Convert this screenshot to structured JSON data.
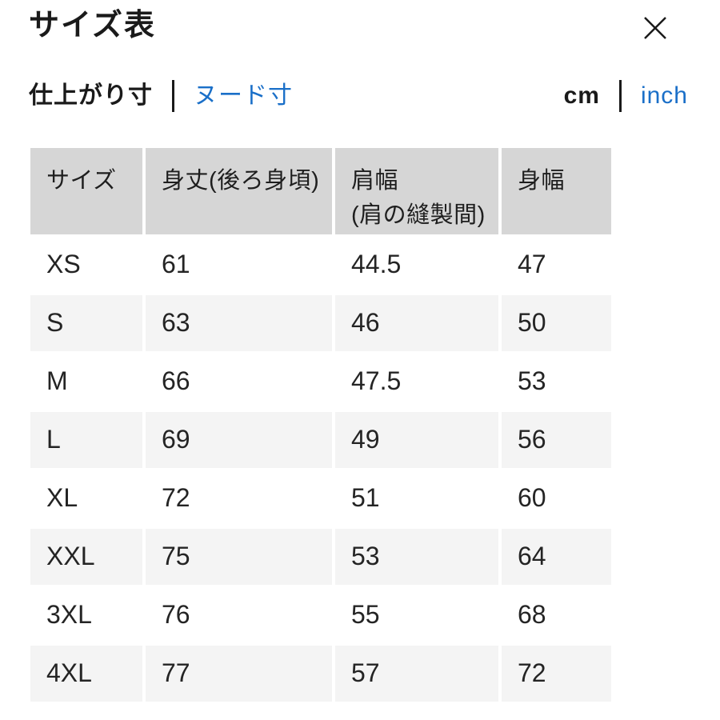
{
  "modal": {
    "title": "サイズ表"
  },
  "icons": {
    "close": "✕"
  },
  "toggles": {
    "measurement": {
      "active": "仕上がり寸",
      "inactive": "ヌード寸"
    },
    "unit": {
      "active": "cm",
      "inactive": "inch"
    }
  },
  "table": {
    "columns": [
      {
        "label": "サイズ",
        "sublabel": ""
      },
      {
        "label": "身丈(後ろ身頃)",
        "sublabel": ""
      },
      {
        "label": "肩幅",
        "sublabel": "(肩の縫製間)"
      },
      {
        "label": "身幅",
        "sublabel": ""
      }
    ],
    "rows": [
      {
        "size": "XS",
        "values": [
          "61",
          "44.5",
          "47"
        ]
      },
      {
        "size": "S",
        "values": [
          "63",
          "46",
          "50"
        ]
      },
      {
        "size": "M",
        "values": [
          "66",
          "47.5",
          "53"
        ]
      },
      {
        "size": "L",
        "values": [
          "69",
          "49",
          "56"
        ]
      },
      {
        "size": "XL",
        "values": [
          "72",
          "51",
          "60"
        ]
      },
      {
        "size": "XXL",
        "values": [
          "75",
          "53",
          "64"
        ]
      },
      {
        "size": "3XL",
        "values": [
          "76",
          "55",
          "68"
        ]
      },
      {
        "size": "4XL",
        "values": [
          "77",
          "57",
          "72"
        ]
      }
    ]
  },
  "colors": {
    "link_blue": "#1a6fc8",
    "header_bg": "#d6d6d6",
    "stripe_bg": "#f4f4f4",
    "text": "#1a1a1a"
  }
}
